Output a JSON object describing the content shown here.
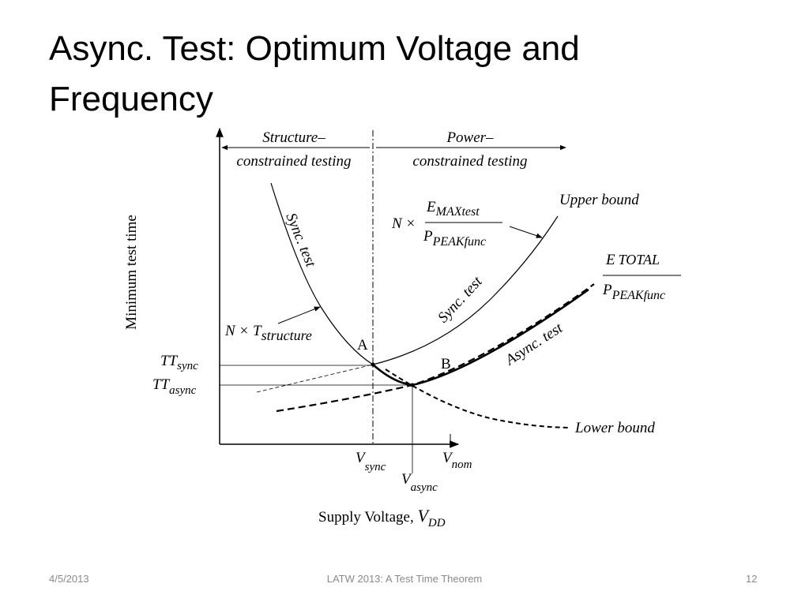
{
  "header": {
    "title": "Async. Test: Optimum Voltage and Frequency"
  },
  "diagram": {
    "y_axis_label": "Minimum test time",
    "x_axis_label": {
      "main": "Supply Voltage, ",
      "v": "V",
      "sub": "DD"
    },
    "regions": [
      {
        "line1": "Structure–",
        "line2": "constrained testing"
      },
      {
        "line1": "Power–",
        "line2": "constrained testing"
      }
    ],
    "curve_labels": {
      "sync_left": "Sync. test",
      "sync_right": "Sync. test",
      "async": "Async. test",
      "upper": "Upper bound",
      "lower": "Lower bound"
    },
    "upper_formula": {
      "n": "N ×",
      "num": "E",
      "num_sub": "MAXtest",
      "den": "P",
      "den_sub": "PEAKfunc"
    },
    "total_formula": {
      "num": "E",
      "num_sub": "TOTAL",
      "den": "P",
      "den_sub": "PEAKfunc"
    },
    "structure_formula": {
      "n": "N × T",
      "sub": "structure"
    },
    "points": {
      "a": "A",
      "b": "B"
    },
    "tt_sync": {
      "main": "TT",
      "sub": "sync"
    },
    "tt_async": {
      "main": "TT",
      "sub": "async"
    },
    "v_sync": {
      "main": "V",
      "sub": "sync"
    },
    "v_async": {
      "main": "V",
      "sub": "async"
    },
    "v_nom": {
      "main": "V",
      "sub": "nom"
    }
  },
  "footer": {
    "date": "4/5/2013",
    "center": "LATW 2013: A Test Time Theorem",
    "page": "12"
  }
}
